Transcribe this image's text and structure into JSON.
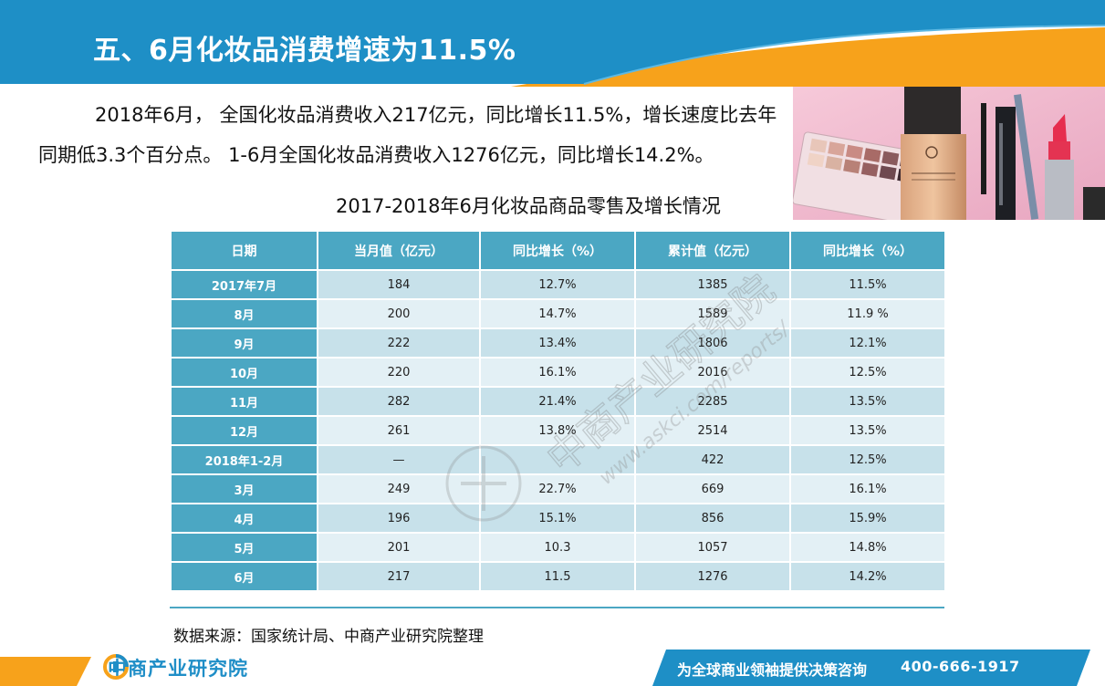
{
  "slide": {
    "title": "五、6月化妆品消费增速为11.5%"
  },
  "intro": {
    "paragraph": "2018年6月， 全国化妆品消费收入217亿元，同比增长11.5%，增长速度比去年同期低3.3个百分点。 1-6月全国化妆品消费收入1276亿元，同比增长14.2%。",
    "table_caption": "2017-2018年6月化妆品商品零售及增长情况"
  },
  "table": {
    "headers": [
      "日期",
      "当月值（亿元）",
      "同比增长（%）",
      "累计值（亿元）",
      "同比增长（%）"
    ],
    "rows": [
      [
        "2017年7月",
        "184",
        "12.7%",
        "1385",
        "11.5%"
      ],
      [
        "8月",
        "200",
        "14.7%",
        "1589",
        "11.9 %"
      ],
      [
        "9月",
        "222",
        "13.4%",
        "1806",
        "12.1%"
      ],
      [
        "10月",
        "220",
        "16.1%",
        "2016",
        "12.5%"
      ],
      [
        "11月",
        "282",
        "21.4%",
        "2285",
        "13.5%"
      ],
      [
        "12月",
        "261",
        "13.8%",
        "2514",
        "13.5%"
      ],
      [
        "2018年1-2月",
        "—",
        "",
        "422",
        "12.5%"
      ],
      [
        "3月",
        "249",
        "22.7%",
        "669",
        "16.1%"
      ],
      [
        "4月",
        "196",
        "15.1%",
        "856",
        "15.9%"
      ],
      [
        "5月",
        "201",
        "10.3",
        "1057",
        "14.8%"
      ],
      [
        "6月",
        "217",
        "11.5",
        "1276",
        "14.2%"
      ]
    ]
  },
  "source": {
    "text": "数据来源：国家统计局、中商产业研究院整理"
  },
  "watermark": {
    "brand": "中商产业研究院",
    "url": "www.askci.com/reports/"
  },
  "footer": {
    "logo_text": "中商产业研究院",
    "slogan": "为全球商业领袖提供决策咨询",
    "phone": "400-666-1917"
  },
  "colors": {
    "header_blue": "#1e8fc6",
    "accent_orange": "#f7a21b",
    "table_header": "#4ba7c3",
    "row_odd": "#c7e1ea",
    "row_even": "#e3f0f5"
  }
}
